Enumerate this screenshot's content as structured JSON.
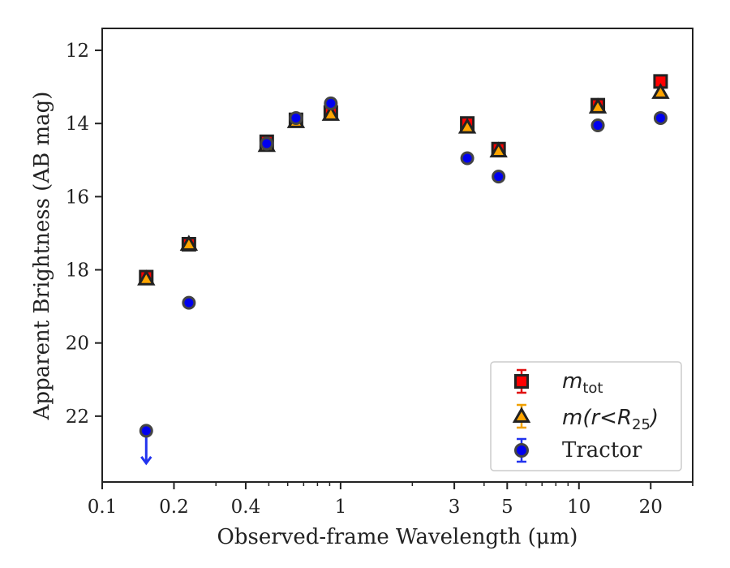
{
  "chart_data": {
    "type": "scatter",
    "xlabel": "Observed-frame Wavelength (μm)",
    "ylabel": "Apparent Brightness (AB mag)",
    "xscale": "log",
    "xlim": [
      0.1,
      30
    ],
    "ylim": [
      23.8,
      11.4
    ],
    "y_inverted": true,
    "x_ticks": [
      {
        "value": 0.1,
        "label": "0.1"
      },
      {
        "value": 0.2,
        "label": "0.2"
      },
      {
        "value": 0.4,
        "label": "0.4"
      },
      {
        "value": 1,
        "label": "1"
      },
      {
        "value": 3,
        "label": "3"
      },
      {
        "value": 5,
        "label": "5"
      },
      {
        "value": 10,
        "label": "10"
      },
      {
        "value": 20,
        "label": "20"
      }
    ],
    "y_ticks": [
      {
        "value": 12,
        "label": "12"
      },
      {
        "value": 14,
        "label": "14"
      },
      {
        "value": 16,
        "label": "16"
      },
      {
        "value": 18,
        "label": "18"
      },
      {
        "value": 20,
        "label": "20"
      },
      {
        "value": 22,
        "label": "22"
      }
    ],
    "legend_position": "lower-right",
    "series": [
      {
        "name": "m_tot",
        "marker": "square",
        "color": "#ff0000",
        "edge": "#222222",
        "points": [
          {
            "x": 0.153,
            "y": 18.2
          },
          {
            "x": 0.231,
            "y": 17.3
          },
          {
            "x": 0.49,
            "y": 14.5
          },
          {
            "x": 0.65,
            "y": 13.9
          },
          {
            "x": 0.91,
            "y": 13.7
          },
          {
            "x": 3.4,
            "y": 14.0
          },
          {
            "x": 4.6,
            "y": 14.7
          },
          {
            "x": 12,
            "y": 13.5
          },
          {
            "x": 22,
            "y": 12.85
          }
        ]
      },
      {
        "name": "m(r<R_25)",
        "marker": "triangle",
        "color": "#ffa500",
        "edge": "#222222",
        "points": [
          {
            "x": 0.153,
            "y": 18.25
          },
          {
            "x": 0.231,
            "y": 17.3
          },
          {
            "x": 0.49,
            "y": 14.6
          },
          {
            "x": 0.65,
            "y": 13.95
          },
          {
            "x": 0.91,
            "y": 13.75
          },
          {
            "x": 3.4,
            "y": 14.1
          },
          {
            "x": 4.6,
            "y": 14.75
          },
          {
            "x": 12,
            "y": 13.55
          },
          {
            "x": 22,
            "y": 13.15
          }
        ]
      },
      {
        "name": "Tractor",
        "marker": "circle",
        "color": "#0000ee",
        "edge": "#444444",
        "points": [
          {
            "x": 0.153,
            "y": 22.4,
            "upper_limit": true
          },
          {
            "x": 0.231,
            "y": 18.9
          },
          {
            "x": 0.49,
            "y": 14.55
          },
          {
            "x": 0.65,
            "y": 13.85
          },
          {
            "x": 0.91,
            "y": 13.45
          },
          {
            "x": 3.4,
            "y": 14.95
          },
          {
            "x": 4.6,
            "y": 15.45
          },
          {
            "x": 12,
            "y": 14.05
          },
          {
            "x": 22,
            "y": 13.85
          }
        ]
      }
    ]
  }
}
